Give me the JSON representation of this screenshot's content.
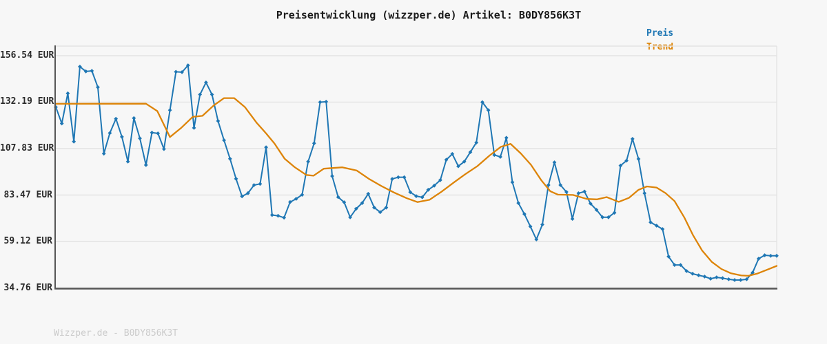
{
  "header": {
    "title": "Preisentwicklung (wizzper.de) Artikel: B0DY856K3T"
  },
  "legend": {
    "items": [
      {
        "label": "Preis",
        "color": "#1f77b4"
      },
      {
        "label": "Trend",
        "color": "#dd8408"
      }
    ]
  },
  "footer": {
    "watermark": "Wizzper.de - B0DY856K3T"
  },
  "colors": {
    "background": "#f7f7f7",
    "grid": "#e4e4e4",
    "spine": "#565656",
    "price": "#1f77b4",
    "trend": "#dd8408",
    "title": "#1b1b1b",
    "tick_label": "#2b2b2b",
    "watermark": "#cbcbcb"
  },
  "chart_data": {
    "type": "line",
    "title": "Preisentwicklung (wizzper.de) Artikel: B0DY856K3T",
    "xlabel": "",
    "ylabel": "",
    "grid": true,
    "legend_position": "top-right",
    "y_axis": {
      "ylim": [
        34.76,
        156.54
      ],
      "ticks": [
        {
          "value": 156.54,
          "label": "156.54 EUR"
        },
        {
          "value": 132.19,
          "label": "132.19 EUR"
        },
        {
          "value": 107.83,
          "label": "107.83 EUR"
        },
        {
          "value": 83.47,
          "label": "83.47 EUR"
        },
        {
          "value": 59.12,
          "label": "59.12 EUR"
        },
        {
          "value": 34.76,
          "label": "34.76 EUR"
        }
      ]
    },
    "series": [
      {
        "name": "Preis",
        "color": "#1f77b4",
        "marker": "diamond",
        "unit": "EUR",
        "values": [
          129.6,
          121.0,
          136.8,
          111.5,
          150.8,
          148.3,
          148.6,
          140.0,
          105.2,
          116.0,
          123.5,
          114.0,
          101.0,
          123.8,
          113.2,
          99.2,
          116.2,
          115.8,
          107.6,
          128.0,
          148.1,
          147.9,
          151.5,
          118.7,
          136.2,
          142.5,
          136.2,
          122.3,
          112.2,
          102.5,
          92.0,
          82.8,
          84.5,
          88.7,
          89.3,
          108.5,
          73.0,
          72.6,
          71.6,
          79.8,
          81.5,
          83.6,
          101.0,
          110.6,
          132.2,
          132.4,
          93.4,
          82.4,
          79.7,
          71.8,
          76.3,
          79.3,
          84.1,
          76.9,
          74.5,
          76.9,
          91.9,
          92.8,
          92.8,
          85.0,
          82.9,
          82.3,
          86.2,
          88.4,
          91.3,
          102.0,
          105.0,
          98.6,
          101.0,
          106.0,
          111.0,
          132.2,
          128.0,
          104.5,
          103.5,
          113.5,
          90.2,
          79.3,
          73.5,
          67.0,
          60.2,
          68.0,
          88.7,
          100.6,
          88.7,
          85.1,
          71.0,
          84.4,
          85.3,
          79.0,
          75.7,
          71.8,
          71.8,
          74.2,
          98.9,
          101.5,
          112.9,
          102.4,
          84.4,
          69.2,
          67.4,
          65.6,
          51.2,
          46.8,
          46.8,
          43.6,
          42.2,
          41.4,
          40.7,
          39.6,
          40.3,
          39.9,
          39.3,
          38.9,
          38.9,
          39.3,
          42.8,
          50.1,
          51.9,
          51.6,
          51.6
        ]
      },
      {
        "name": "Trend",
        "color": "#dd8408",
        "marker": "none",
        "unit": "EUR",
        "points": [
          [
            0,
            131.3
          ],
          [
            15,
            131.4
          ],
          [
            16.9,
            127.5
          ],
          [
            19,
            113.9
          ],
          [
            20.8,
            118.5
          ],
          [
            22.8,
            124.5
          ],
          [
            24.4,
            125.0
          ],
          [
            26.3,
            130.5
          ],
          [
            28,
            134.3
          ],
          [
            29.7,
            134.3
          ],
          [
            31.5,
            129.5
          ],
          [
            33.4,
            121.5
          ],
          [
            35,
            115.8
          ],
          [
            36.4,
            110.5
          ],
          [
            38.1,
            102.5
          ],
          [
            39.8,
            98.0
          ],
          [
            41.7,
            94.0
          ],
          [
            42.9,
            93.6
          ],
          [
            44.6,
            97.3
          ],
          [
            47.7,
            98.0
          ],
          [
            50.1,
            96.3
          ],
          [
            52.2,
            91.8
          ],
          [
            54.2,
            88.2
          ],
          [
            56.3,
            84.8
          ],
          [
            58.4,
            81.8
          ],
          [
            60.2,
            79.8
          ],
          [
            62.2,
            81.0
          ],
          [
            64.2,
            85.2
          ],
          [
            66.3,
            90.2
          ],
          [
            68.2,
            94.5
          ],
          [
            70.2,
            98.7
          ],
          [
            72.2,
            104.2
          ],
          [
            74.1,
            108.8
          ],
          [
            75.7,
            110.3
          ],
          [
            77.4,
            105.3
          ],
          [
            79.1,
            99.3
          ],
          [
            80.8,
            91.3
          ],
          [
            82.3,
            85.5
          ],
          [
            83.6,
            83.7
          ],
          [
            86.1,
            83.5
          ],
          [
            88.4,
            81.4
          ],
          [
            90.1,
            81.2
          ],
          [
            91.7,
            82.4
          ],
          [
            93.7,
            79.9
          ],
          [
            95.4,
            82.0
          ],
          [
            97,
            86.2
          ],
          [
            98.4,
            88.0
          ],
          [
            100,
            87.4
          ],
          [
            101.5,
            84.5
          ],
          [
            103,
            80.3
          ],
          [
            104.6,
            71.8
          ],
          [
            106.1,
            62.3
          ],
          [
            107.6,
            54.3
          ],
          [
            109.2,
            48.4
          ],
          [
            110.8,
            44.7
          ],
          [
            112.4,
            42.4
          ],
          [
            114.1,
            41.3
          ],
          [
            115.3,
            41.1
          ],
          [
            116.8,
            42.3
          ],
          [
            118.4,
            44.3
          ],
          [
            120,
            46.3
          ]
        ]
      }
    ]
  }
}
